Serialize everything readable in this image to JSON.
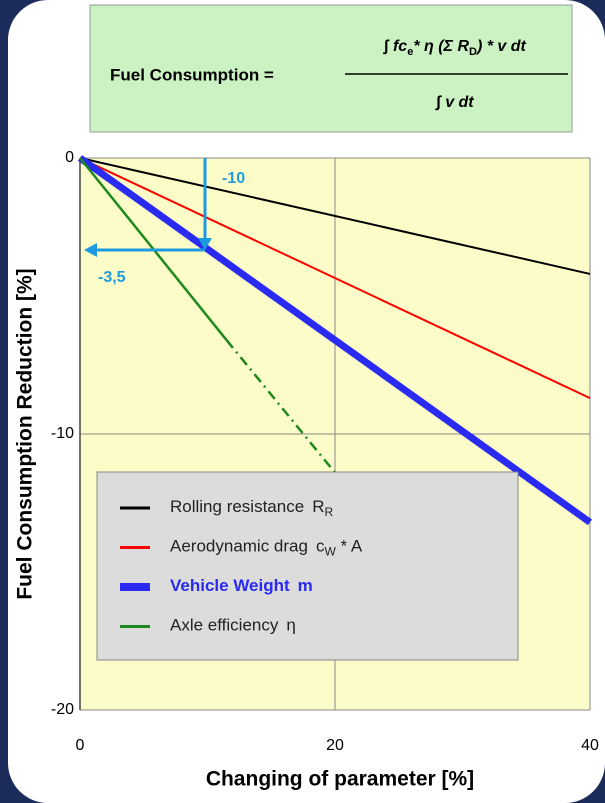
{
  "chart_data": {
    "type": "line",
    "formula": {
      "lhs": "Fuel Consumption =",
      "numerator_parts": [
        {
          "text": "∫ fc",
          "sub": false
        },
        {
          "text": "e",
          "sub": true
        },
        {
          "text": "* η (Σ R",
          "sub": false
        },
        {
          "text": "D",
          "sub": true
        },
        {
          "text": ") * v dt",
          "sub": false
        }
      ],
      "denominator": "∫ v dt"
    },
    "xlabel": "Changing of parameter [%]",
    "ylabel": "Fuel Consumption Reduction [%]",
    "xlim": [
      0,
      40
    ],
    "ylim": [
      -20,
      0
    ],
    "xticks": [
      0,
      20,
      40
    ],
    "yticks": [
      0,
      -10,
      -20
    ],
    "grid": true,
    "series": [
      {
        "name": "Rolling resistance",
        "symbol": "R",
        "symbol_sub": "R",
        "symbol_tail": "",
        "color": "#000000",
        "width": 2,
        "x": [
          0,
          40
        ],
        "values": [
          0,
          -4.2
        ]
      },
      {
        "name": "Aerodynamic drag",
        "symbol": "c",
        "symbol_sub": "W",
        "symbol_tail": " * A",
        "color": "#ff0000",
        "width": 2,
        "x": [
          0,
          40
        ],
        "values": [
          0,
          -8.7
        ]
      },
      {
        "name": "Vehicle Weight",
        "symbol": "m",
        "symbol_sub": "",
        "symbol_tail": "",
        "color": "#2a2af0",
        "width": 7,
        "bold": true,
        "x": [
          0,
          40
        ],
        "values": [
          0,
          -13.2
        ]
      },
      {
        "name": "Axle efficiency",
        "symbol": "η",
        "symbol_sub": "",
        "symbol_tail": "",
        "color": "#1e8a1e",
        "width": 2.5,
        "x": [
          0,
          11.5
        ],
        "values": [
          0,
          -6.6
        ],
        "extension": {
          "x": [
            11.5,
            20
          ],
          "values": [
            -6.6,
            -11.4
          ],
          "style": "dashdot"
        }
      }
    ],
    "annotations": [
      "-10",
      "-3,5"
    ],
    "annotation_color": "#1e9be0"
  }
}
